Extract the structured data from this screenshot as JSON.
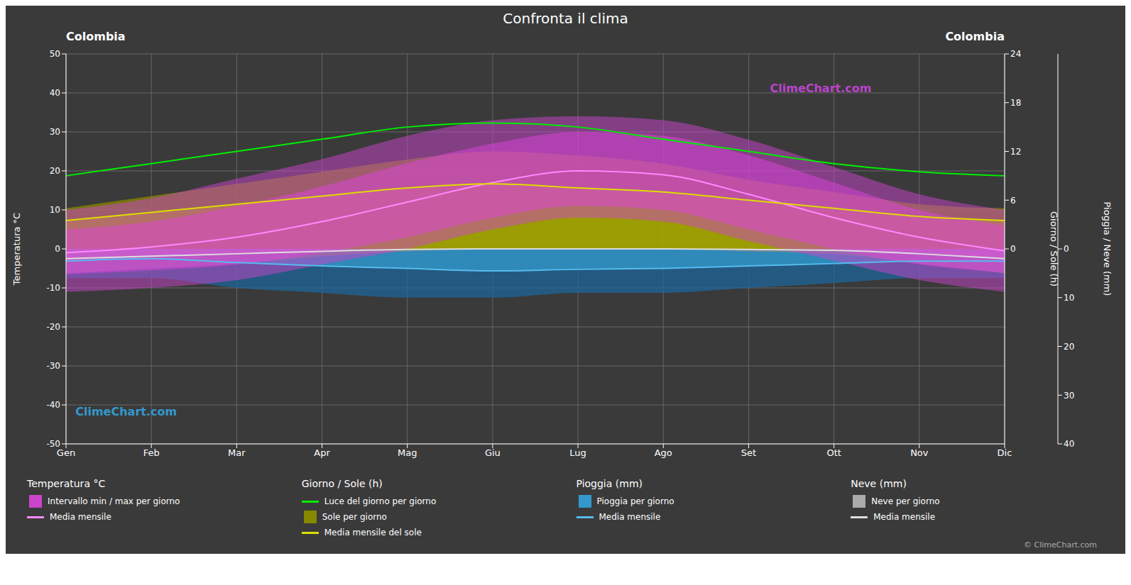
{
  "chart_data": {
    "type": "area",
    "title": "Confronta il clima",
    "categories": [
      "Gen",
      "Feb",
      "Mar",
      "Apr",
      "Mag",
      "Giu",
      "Lug",
      "Ago",
      "Set",
      "Ott",
      "Nov",
      "Dic"
    ],
    "ylabel": "Temperatura °C",
    "y2label": "Giorno / Sole (h)",
    "y3label": "Pioggia / Neve (mm)",
    "ylim": [
      -50,
      50
    ],
    "yticks": [
      -50,
      -40,
      -30,
      -20,
      -10,
      0,
      10,
      20,
      30,
      40,
      50
    ],
    "y2lim": [
      -24,
      24
    ],
    "y2ticks": [
      0,
      6,
      12,
      18,
      24
    ],
    "y3lim": [
      40,
      -40
    ],
    "y3ticks": [
      0,
      10,
      20,
      30,
      40
    ],
    "grid": true,
    "legend": "bottom",
    "annotations": [
      {
        "text": "Colombia"
      },
      {
        "text": "Colombia"
      },
      {
        "text": "ClimeChart.com",
        "color": "#bb44cc"
      },
      {
        "text": "ClimeChart.com",
        "color": "#3399cc"
      },
      {
        "text": "© ClimeChart.com",
        "color": "#aaaaaa"
      }
    ],
    "series": [
      {
        "name": "Intervallo min / max per giorno",
        "group": "Temperatura °C",
        "type": "range",
        "color": "#cc44cc",
        "low": [
          -11.0,
          -10.0,
          -8.0,
          -4.0,
          0.0,
          5.0,
          8.0,
          7.0,
          2.0,
          -3.0,
          -8.0,
          -11.0
        ],
        "high": [
          10.0,
          13.0,
          18.0,
          23.0,
          29.0,
          33.0,
          34.0,
          33.0,
          28.0,
          21.0,
          14.0,
          10.0
        ]
      },
      {
        "type": "range",
        "color": "#dd44dd",
        "low": [
          -6.5,
          -5.5,
          -4.0,
          -1.0,
          3.0,
          8.0,
          11.0,
          10.0,
          5.0,
          0.0,
          -4.0,
          -6.0
        ],
        "high": [
          5.0,
          7.0,
          11.0,
          16.0,
          22.0,
          27.0,
          30.0,
          29.0,
          24.0,
          17.0,
          10.0,
          6.0
        ]
      },
      {
        "name": "Media mensile",
        "group": "Temperatura °C",
        "type": "line",
        "color": "#ff88ff",
        "values": [
          -1.0,
          0.5,
          3.0,
          7.0,
          12.0,
          17.0,
          20.0,
          19.0,
          14.0,
          8.0,
          3.0,
          -0.5
        ]
      },
      {
        "name": "Luce del giorno per giorno",
        "group": "Giorno / Sole (h)",
        "type": "line",
        "axis": "y2",
        "color": "#00ee00",
        "values": [
          9.0,
          10.5,
          12.0,
          13.5,
          15.0,
          15.5,
          15.0,
          13.5,
          12.0,
          10.5,
          9.5,
          9.0
        ]
      },
      {
        "name": "Sole per giorno",
        "group": "Giorno / Sole (h)",
        "type": "area",
        "axis": "y2",
        "color": "#888800",
        "values": [
          5.0,
          6.5,
          8.0,
          9.5,
          11.0,
          12.0,
          11.5,
          10.5,
          8.5,
          7.0,
          5.5,
          5.0
        ]
      },
      {
        "type": "area",
        "axis": "y2",
        "color": "#aaaa00",
        "values": [
          3.5,
          4.5,
          5.5,
          6.5,
          7.5,
          8.0,
          7.5,
          7.0,
          6.0,
          5.0,
          4.0,
          3.5
        ]
      },
      {
        "name": "Media mensile del sole",
        "group": "Giorno / Sole (h)",
        "type": "line",
        "axis": "y2",
        "color": "#dddd00",
        "values": [
          3.5,
          4.5,
          5.5,
          6.5,
          7.5,
          8.0,
          7.5,
          7.0,
          6.0,
          5.0,
          4.0,
          3.5
        ]
      },
      {
        "type": "area",
        "axis": "y3",
        "color": "#1e6699",
        "values": [
          6.0,
          6.0,
          8.0,
          9.0,
          10.0,
          10.0,
          9.0,
          9.0,
          8.0,
          7.0,
          6.0,
          6.0
        ]
      },
      {
        "name": "Pioggia per giorno",
        "group": "Pioggia (mm)",
        "type": "area",
        "axis": "y3",
        "color": "#3399cc",
        "values": [
          2.5,
          2.0,
          2.8,
          3.5,
          4.0,
          4.5,
          4.2,
          4.0,
          3.5,
          3.0,
          2.5,
          2.5
        ]
      },
      {
        "name": "Media mensile",
        "group": "Pioggia (mm)",
        "type": "line",
        "axis": "y3",
        "color": "#55bbee",
        "values": [
          2.5,
          2.0,
          2.8,
          3.5,
          4.0,
          4.5,
          4.2,
          4.0,
          3.5,
          3.0,
          2.5,
          2.5
        ]
      },
      {
        "type": "area",
        "axis": "y3",
        "color": "#888888",
        "values": [
          5.0,
          4.0,
          3.0,
          1.5,
          0.5,
          0.0,
          0.0,
          0.0,
          0.5,
          1.0,
          3.0,
          5.0
        ]
      },
      {
        "name": "Neve per giorno",
        "group": "Neve (mm)",
        "type": "area",
        "axis": "y3",
        "color": "#aaaaaa",
        "values": [
          2.0,
          1.5,
          1.0,
          0.5,
          0.1,
          0.0,
          0.0,
          0.0,
          0.1,
          0.3,
          1.0,
          2.0
        ]
      },
      {
        "name": "Media mensile",
        "group": "Neve (mm)",
        "type": "line",
        "axis": "y3",
        "color": "#dddddd",
        "values": [
          2.0,
          1.5,
          1.0,
          0.5,
          0.1,
          0.0,
          0.0,
          0.0,
          0.1,
          0.3,
          1.0,
          2.0
        ]
      }
    ]
  }
}
